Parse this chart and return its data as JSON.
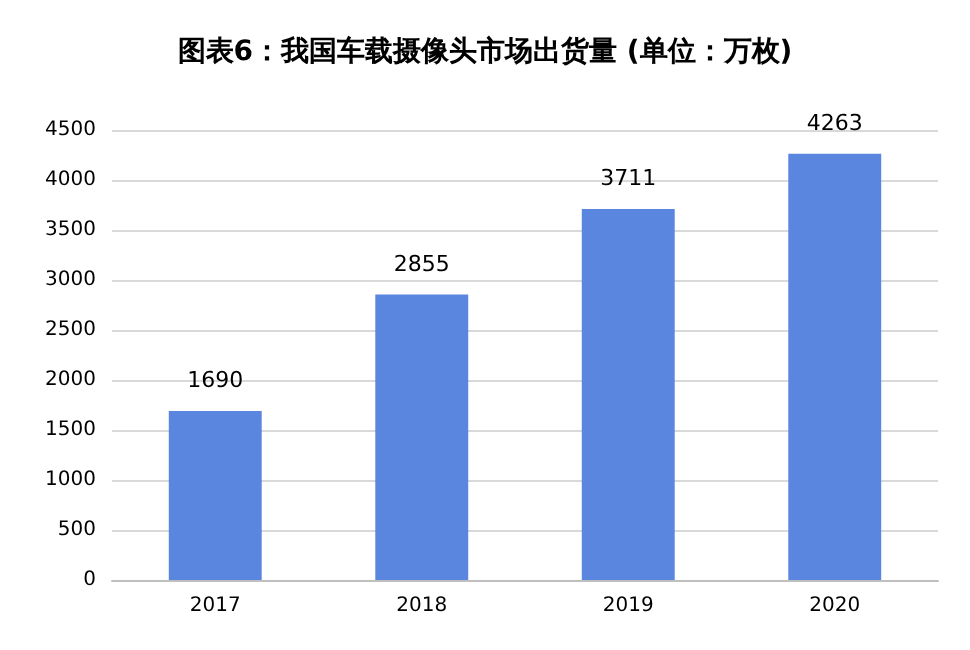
{
  "chart_data": {
    "type": "bar",
    "title": "图表6：我国车载摄像头市场出货量 (单位：万枚)",
    "categories": [
      "2017",
      "2018",
      "2019",
      "2020"
    ],
    "values": [
      1690,
      2855,
      3711,
      4263
    ],
    "color": "#5b86e0",
    "ylim": [
      0,
      4500
    ],
    "yticks": [
      0,
      500,
      1000,
      1500,
      2000,
      2500,
      3000,
      3500,
      4000,
      4500
    ],
    "grid": "y",
    "data_labels": true
  }
}
